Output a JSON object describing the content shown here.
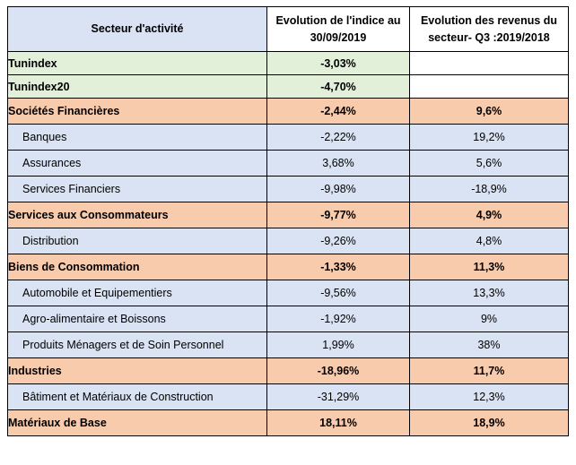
{
  "headers": {
    "sector": "Secteur d'activité",
    "index_line1": "Evolution de l'indice au",
    "index_line2": "30/09/2019",
    "rev_line1": "Evolution des revenus du",
    "rev_line2": "secteur- Q3 :2019/2018"
  },
  "rows": [
    {
      "kind": "index",
      "label": "Tunindex",
      "index_change": "-3,03%",
      "revenue_change": ""
    },
    {
      "kind": "index",
      "label": "Tunindex20",
      "index_change": "-4,70%",
      "revenue_change": ""
    },
    {
      "kind": "sector",
      "label": "Sociétés Financières",
      "index_change": "-2,44%",
      "revenue_change": "9,6%"
    },
    {
      "kind": "sub",
      "label": "Banques",
      "index_change": "-2,22%",
      "revenue_change": "19,2%"
    },
    {
      "kind": "sub",
      "label": "Assurances",
      "index_change": "3,68%",
      "revenue_change": "5,6%"
    },
    {
      "kind": "sub",
      "label": "Services Financiers",
      "index_change": "-9,98%",
      "revenue_change": "-18,9%"
    },
    {
      "kind": "sector",
      "label": "Services aux Consommateurs",
      "index_change": "-9,77%",
      "revenue_change": "4,9%"
    },
    {
      "kind": "sub",
      "label": "Distribution",
      "index_change": "-9,26%",
      "revenue_change": "4,8%"
    },
    {
      "kind": "sector",
      "label": "Biens de Consommation",
      "index_change": "-1,33%",
      "revenue_change": "11,3%"
    },
    {
      "kind": "sub",
      "label": "Automobile et Equipementiers",
      "index_change": "-9,56%",
      "revenue_change": "13,3%"
    },
    {
      "kind": "sub",
      "label": "Agro-alimentaire et Boissons",
      "index_change": "-1,92%",
      "revenue_change": "9%"
    },
    {
      "kind": "sub",
      "label": "Produits Ménagers et de Soin Personnel",
      "index_change": "1,99%",
      "revenue_change": "38%"
    },
    {
      "kind": "sector",
      "label": "Industries",
      "index_change": "-18,96%",
      "revenue_change": "11,7%"
    },
    {
      "kind": "sub",
      "label": "Bâtiment et Matériaux de Construction",
      "index_change": "-31,29%",
      "revenue_change": "12,3%"
    },
    {
      "kind": "sector",
      "label": "Matériaux de Base",
      "index_change": "18,11%",
      "revenue_change": "18,9%"
    }
  ],
  "colors": {
    "header_sector_bg": "#dae3f3",
    "index_row_bg": "#e2efd9",
    "sector_row_bg": "#f8cbad",
    "sub_row_bg": "#dae3f3",
    "border": "#000000"
  }
}
